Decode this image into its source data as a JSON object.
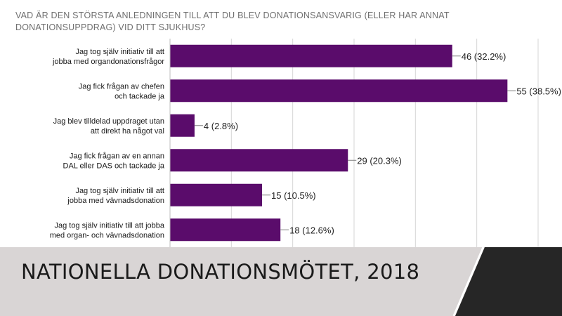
{
  "question": "VAD ÄR DEN STÖRSTA ANLEDNINGEN TILL ATT DU BLEV DONATIONSANSVARIG (ELLER HAR ANNAT DONATIONSUPPDRAG) VID DITT SJUKHUS?",
  "footer": {
    "title": "NATIONELLA DONATIONSMÖTET, 2018"
  },
  "colors": {
    "bar": "#5a0c6b",
    "footer_bg": "#d9d5d5",
    "footer_dark": "#262626",
    "question_text": "#6f6f6f"
  },
  "chart_data": {
    "type": "bar",
    "orientation": "horizontal",
    "title": "VAD ÄR DEN STÖRSTA ANLEDNINGEN TILL ATT DU BLEV DONATIONSANSVARIG (ELLER HAR ANNAT DONATIONSUPPDRAG) VID DITT SJUKHUS?",
    "categories": [
      [
        "Jag tog själv initiativ till att",
        "jobba med organdonationsfrågor"
      ],
      [
        "Jag fick frågan av chefen",
        "och tackade ja"
      ],
      [
        "Jag blev tilldelad uppdraget utan",
        "att direkt ha något val"
      ],
      [
        "Jag fick frågan av en annan",
        "DAL eller DAS och tackade ja"
      ],
      [
        "Jag tog själv initiativ till att",
        "jobba med vävnadsdonation"
      ],
      [
        "Jag tog själv initiativ till att jobba",
        "med organ- och vävnadsdonation"
      ]
    ],
    "values": [
      46,
      55,
      4,
      29,
      15,
      18
    ],
    "data_labels": [
      "46 (32.2%)",
      "55 (38.5%)",
      "4 (2.8%)",
      "29 (20.3%)",
      "15 (10.5%)",
      "18 (12.6%)"
    ],
    "xlim": [
      0,
      60
    ],
    "grid": true,
    "legend": "none"
  }
}
